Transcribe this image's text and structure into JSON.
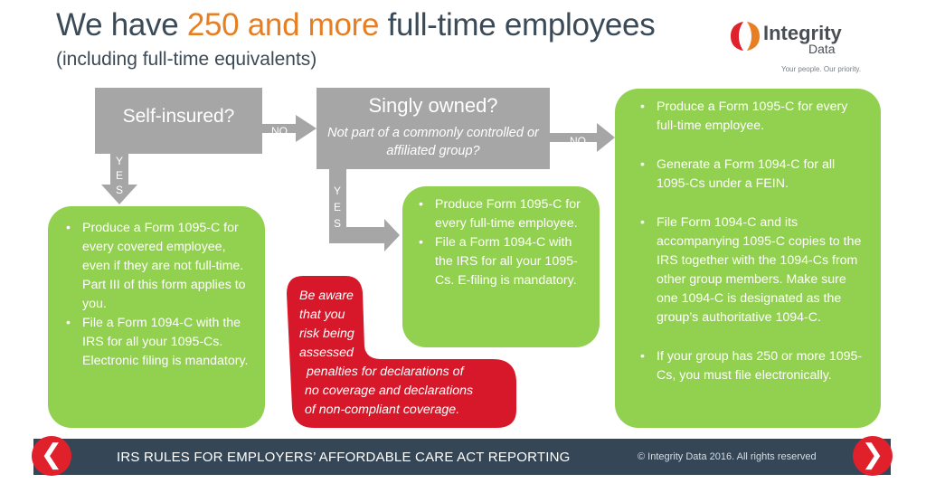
{
  "header": {
    "title_pre": "We have ",
    "title_highlight": "250 and more",
    "title_post": " full-time employees",
    "subtitle": "(including full-time equivalents)"
  },
  "logo": {
    "name": "Integrity",
    "sub": "Data",
    "tagline": "Your people. Our priority.",
    "colors": [
      "#e0202a",
      "#e87e22"
    ]
  },
  "flow": {
    "q1": "Self-insured?",
    "q2_title": "Singly owned?",
    "q2_sub": "Not part of a commonly controlled or affiliated group?",
    "no_label": "NO",
    "yes_letters": [
      "Y",
      "E",
      "S"
    ],
    "box_left": [
      "Produce a Form 1095-C for every covered employee, even if they are not full-time. Part III of this form applies to you.",
      "File a Form 1094-C with the IRS for all your 1095-Cs. Electronic filing is mandatory."
    ],
    "box_mid": [
      "Produce Form 1095-C for every full-time employee.",
      "File a Form 1094-C with the IRS for all your 1095-Cs. E-filing is mandatory."
    ],
    "box_right": [
      "Produce a Form 1095-C for every full-time employee.",
      "Generate a Form 1094-C for all 1095-Cs under a FEIN.",
      "File Form 1094-C and its accompanying 1095-C copies to the IRS together with the 1094-Cs from other group members. Make sure one 1094-C is designated as the group’s authoritative 1094-C.",
      "If your group has 250 or more 1095-Cs, you must file electronically."
    ],
    "warning": [
      "Be aware",
      "that you",
      "risk being",
      "assessed",
      "penalties for declarations of",
      "no coverage and declarations",
      "of non-compliant coverage."
    ]
  },
  "footer": {
    "title": "IRS RULES FOR EMPLOYERS’ AFFORDABLE CARE ACT REPORTING",
    "copyright": "© Integrity Data 2016. All rights reserved",
    "prev_glyph": "❮",
    "next_glyph": "❯"
  },
  "colors": {
    "green": "#92d050",
    "gray": "#a6a6a6",
    "red": "#d7182a",
    "accent": "#e87e22",
    "footer": "#354657"
  }
}
